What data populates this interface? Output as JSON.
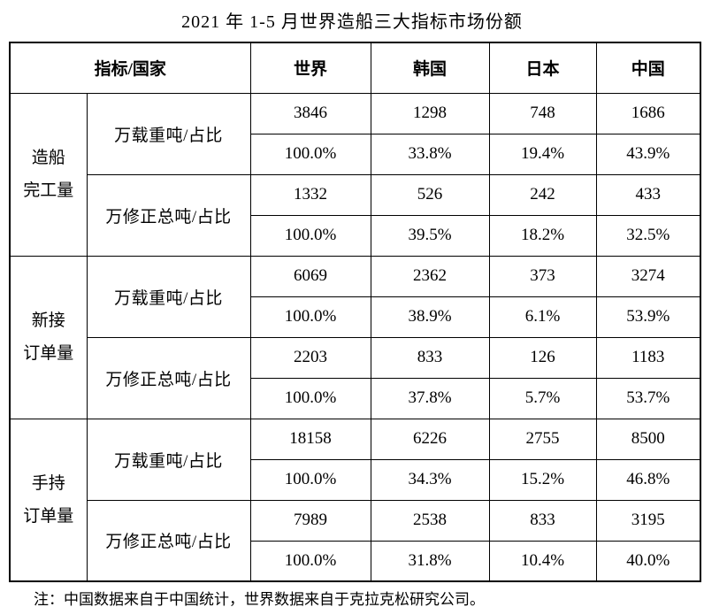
{
  "chart_data": {
    "type": "table",
    "title": "2021 年 1-5 月世界造船三大指标市场份额",
    "header": {
      "corner": "指标/国家",
      "countries": [
        "世界",
        "韩国",
        "日本",
        "中国"
      ]
    },
    "groups": [
      {
        "label": "造船完工量",
        "label_lines": [
          "造船",
          "完工量"
        ],
        "rows": [
          {
            "indicator": "万载重吨/占比",
            "values": [
              "3846",
              "1298",
              "748",
              "1686"
            ],
            "shares": [
              "100.0%",
              "33.8%",
              "19.4%",
              "43.9%"
            ]
          },
          {
            "indicator": "万修正总吨/占比",
            "values": [
              "1332",
              "526",
              "242",
              "433"
            ],
            "shares": [
              "100.0%",
              "39.5%",
              "18.2%",
              "32.5%"
            ]
          }
        ]
      },
      {
        "label": "新接订单量",
        "label_lines": [
          "新接",
          "订单量"
        ],
        "rows": [
          {
            "indicator": "万载重吨/占比",
            "values": [
              "6069",
              "2362",
              "373",
              "3274"
            ],
            "shares": [
              "100.0%",
              "38.9%",
              "6.1%",
              "53.9%"
            ]
          },
          {
            "indicator": "万修正总吨/占比",
            "values": [
              "2203",
              "833",
              "126",
              "1183"
            ],
            "shares": [
              "100.0%",
              "37.8%",
              "5.7%",
              "53.7%"
            ]
          }
        ]
      },
      {
        "label": "手持订单量",
        "label_lines": [
          "手持",
          "订单量"
        ],
        "rows": [
          {
            "indicator": "万载重吨/占比",
            "values": [
              "18158",
              "6226",
              "2755",
              "8500"
            ],
            "shares": [
              "100.0%",
              "34.3%",
              "15.2%",
              "46.8%"
            ]
          },
          {
            "indicator": "万修正总吨/占比",
            "values": [
              "7989",
              "2538",
              "833",
              "3195"
            ],
            "shares": [
              "100.0%",
              "31.8%",
              "10.4%",
              "40.0%"
            ]
          }
        ]
      }
    ],
    "note": "注：中国数据来自于中国统计，世界数据来自于克拉克松研究公司。"
  }
}
